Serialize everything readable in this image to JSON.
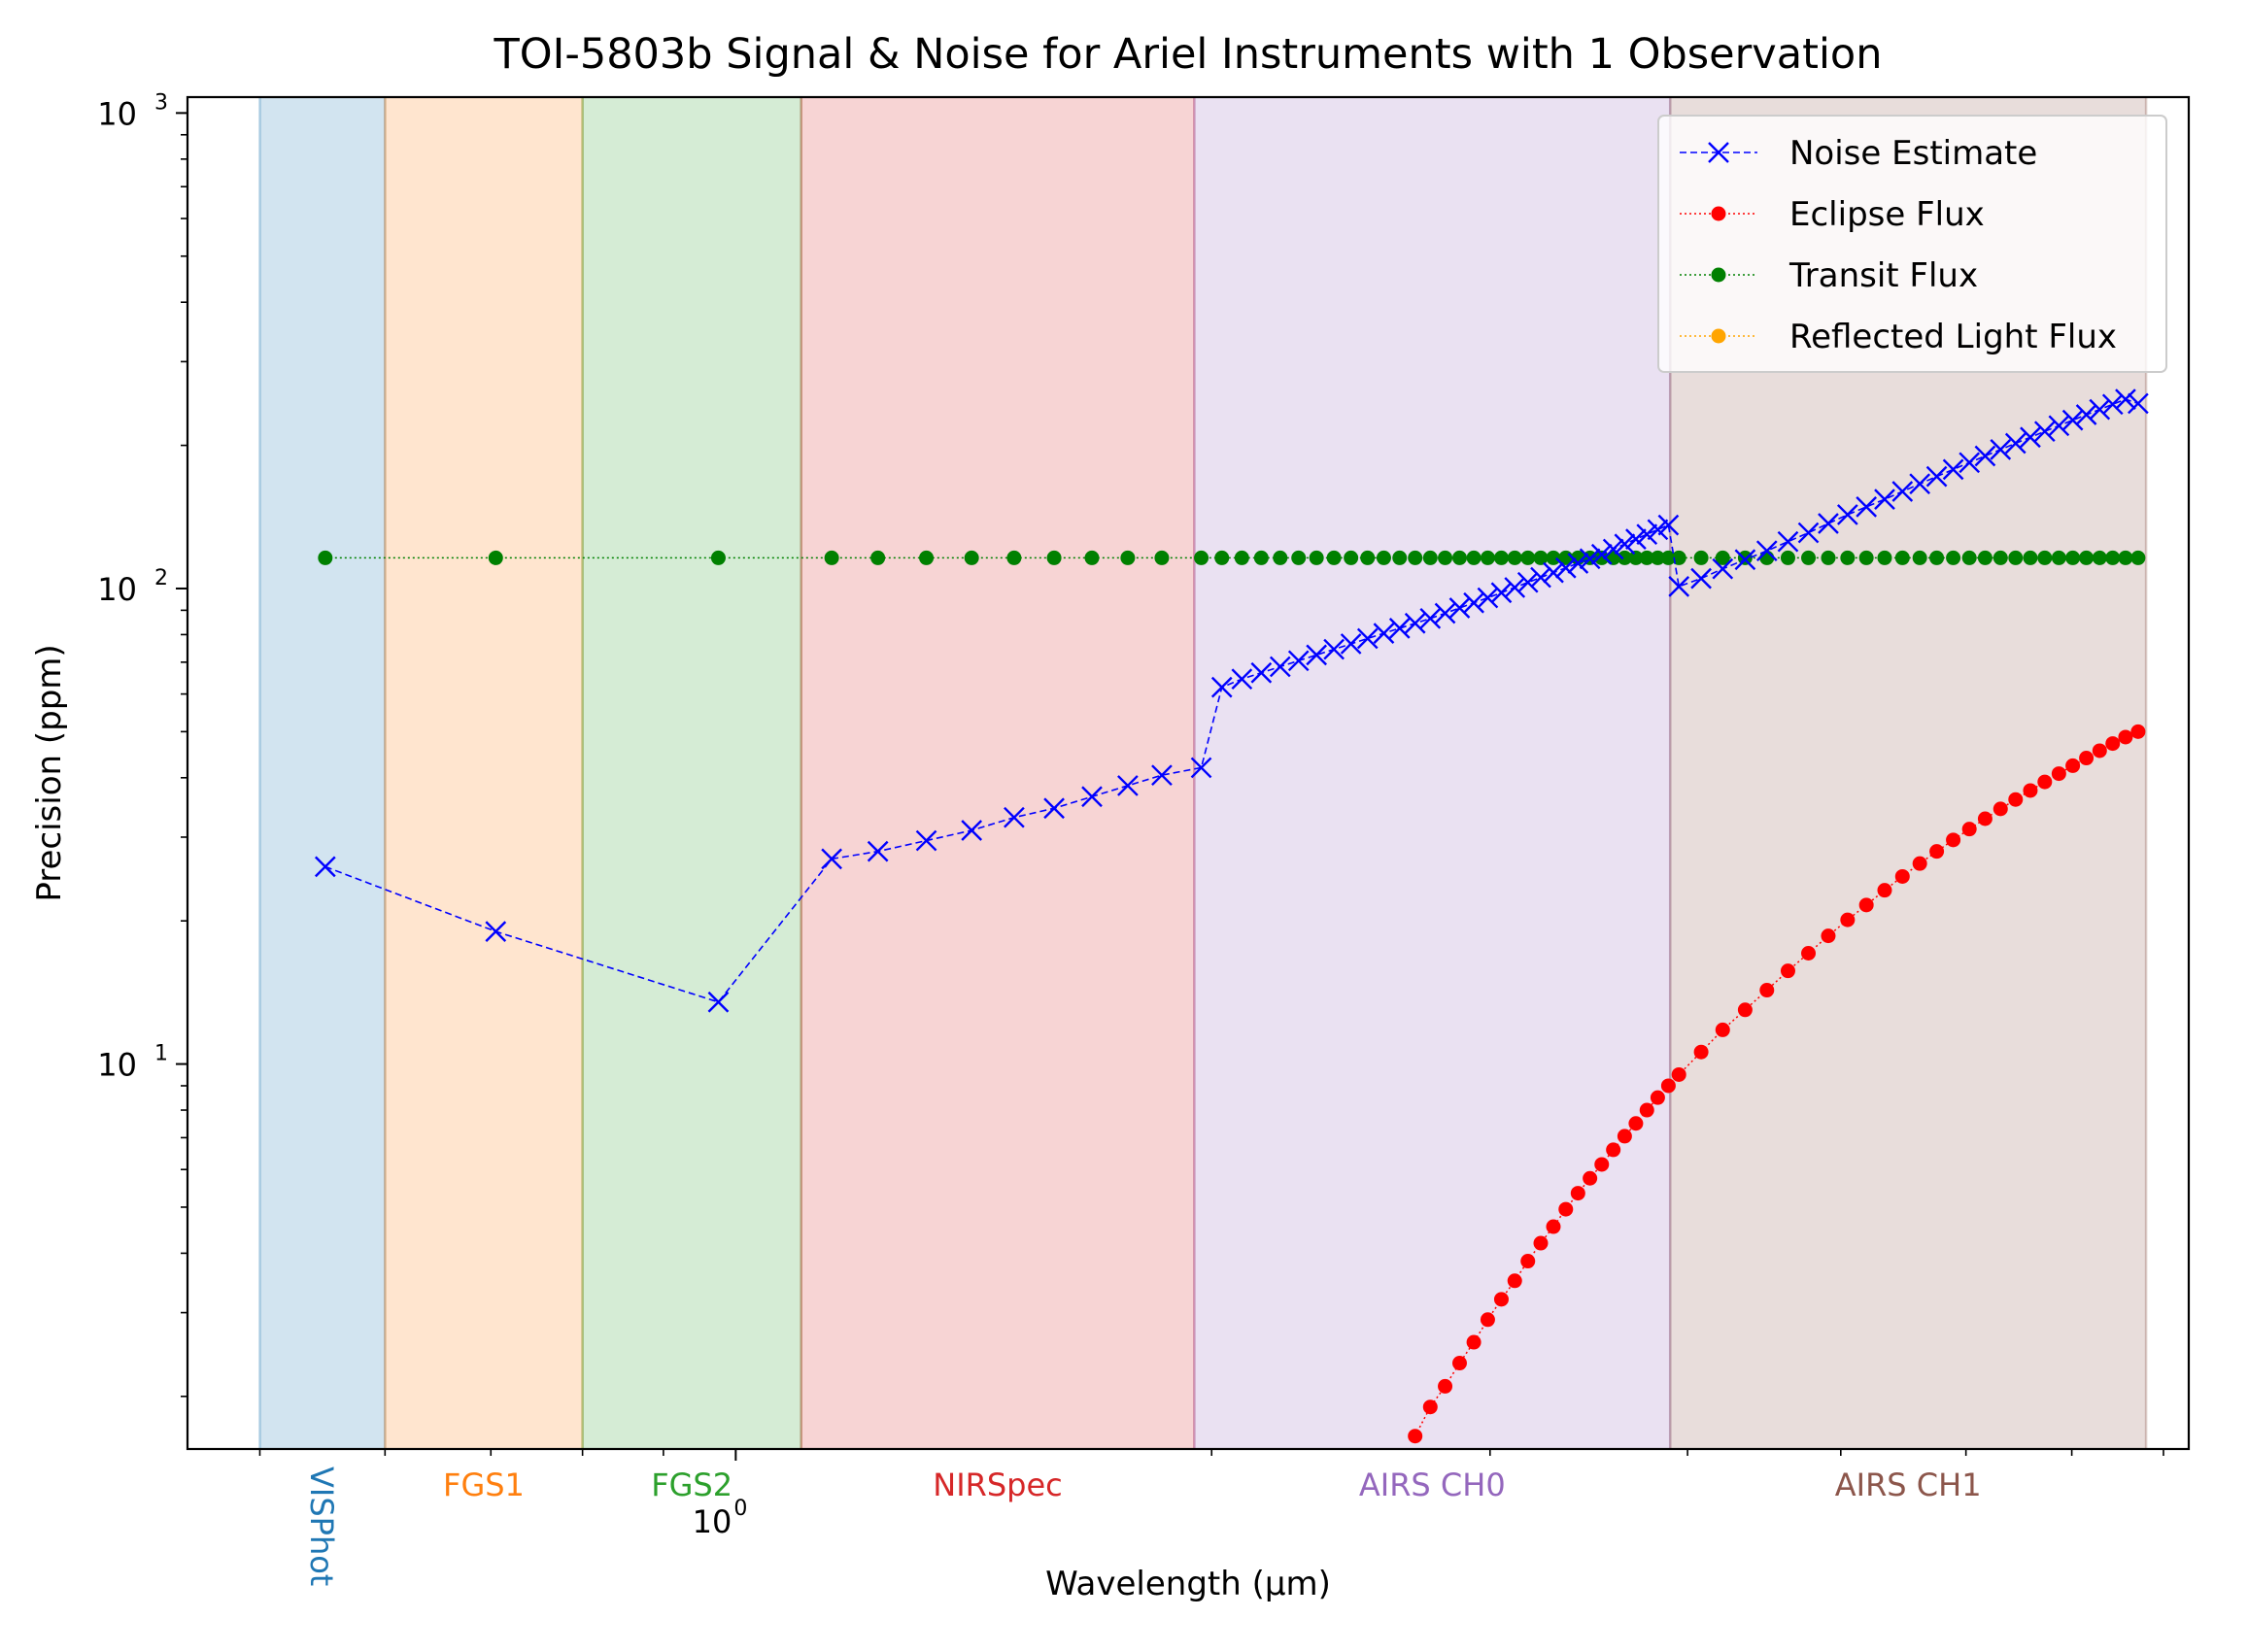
{
  "chart_data": {
    "type": "line",
    "title": "TOI-5803b Signal & Noise for Ariel Instruments with 1 Observation",
    "xlabel": "Wavelength (μm)",
    "ylabel": "Precision (ppm)",
    "x_scale": "log",
    "y_scale": "log",
    "xlim": [
      0.45,
      8.3
    ],
    "ylim": [
      1.55,
      1080
    ],
    "y_tick_labels": [
      "10",
      "10",
      "10"
    ],
    "y_tick_exponents": [
      "1",
      "2",
      "3"
    ],
    "y_tick_values": [
      10,
      100,
      1000
    ],
    "x_tick_label": "10",
    "x_tick_exponent": "0",
    "x_tick_value": 1.0,
    "x_minor_ticks": [
      0.5,
      0.6,
      0.7,
      0.8,
      0.9,
      2,
      3,
      4,
      5,
      6,
      7,
      8
    ],
    "y_minor_ticks": [
      2,
      3,
      4,
      5,
      6,
      7,
      8,
      9,
      20,
      30,
      40,
      50,
      60,
      70,
      80,
      90,
      200,
      300,
      400,
      500,
      600,
      700,
      800,
      900
    ],
    "instrument_bands": [
      {
        "name": "VISPhot",
        "range": [
          0.5,
          0.6
        ],
        "color": "#1f77b4",
        "label_rotated": true
      },
      {
        "name": "FGS1",
        "range": [
          0.6,
          0.8
        ],
        "color": "#ff7f0e",
        "label_rotated": false
      },
      {
        "name": "FGS2",
        "range": [
          0.8,
          1.1
        ],
        "color": "#2ca02c",
        "label_rotated": false
      },
      {
        "name": "NIRSpec",
        "range": [
          1.1,
          1.95
        ],
        "color": "#d62728",
        "label_rotated": false
      },
      {
        "name": "AIRS CH0",
        "range": [
          1.95,
          3.9
        ],
        "color": "#9467bd",
        "label_rotated": false
      },
      {
        "name": "AIRS CH1",
        "range": [
          3.9,
          7.8
        ],
        "color": "#8c564b",
        "label_rotated": false
      }
    ],
    "legend": {
      "placement": "top-right",
      "entries": [
        "Noise Estimate",
        "Eclipse Flux",
        "Transit Flux",
        "Reflected Light Flux"
      ]
    },
    "series": [
      {
        "name": "Noise Estimate",
        "color": "#0000ff",
        "marker": "x",
        "line": "dashed",
        "x": [
          0.55,
          0.705,
          0.975,
          1.15,
          1.23,
          1.32,
          1.41,
          1.5,
          1.59,
          1.68,
          1.77,
          1.86,
          1.97,
          2.03,
          2.09,
          2.15,
          2.21,
          2.27,
          2.33,
          2.39,
          2.45,
          2.51,
          2.57,
          2.63,
          2.69,
          2.75,
          2.81,
          2.87,
          2.93,
          2.99,
          3.05,
          3.11,
          3.17,
          3.23,
          3.29,
          3.35,
          3.41,
          3.47,
          3.53,
          3.59,
          3.65,
          3.71,
          3.77,
          3.83,
          3.89,
          3.95,
          4.08,
          4.21,
          4.35,
          4.49,
          4.63,
          4.77,
          4.91,
          5.05,
          5.19,
          5.33,
          5.47,
          5.61,
          5.75,
          5.89,
          6.03,
          6.17,
          6.31,
          6.45,
          6.59,
          6.73,
          6.87,
          7.01,
          7.15,
          7.29,
          7.43,
          7.57,
          7.71
        ],
        "y": [
          26,
          19,
          13.5,
          27,
          28,
          29.5,
          31,
          33,
          34.5,
          36.5,
          38.5,
          40.5,
          42,
          62,
          64.5,
          66.5,
          68.5,
          70.5,
          72.5,
          74.5,
          76.5,
          78.5,
          80.5,
          82.5,
          84.5,
          86.5,
          88.7,
          91,
          93.3,
          95.6,
          98,
          100.5,
          103,
          105.5,
          108,
          110.5,
          113,
          115.5,
          118,
          121,
          124,
          127,
          130,
          133,
          136,
          101,
          105,
          110,
          115,
          120,
          125.5,
          131,
          137,
          143,
          148.5,
          154,
          160,
          166,
          172,
          178,
          184,
          190,
          196,
          202,
          208,
          214,
          220,
          226,
          232,
          238,
          244,
          250,
          245
        ]
      },
      {
        "name": "Eclipse Flux",
        "color": "#ff0000",
        "marker": "o",
        "line": "dotted",
        "x": [
          2.69,
          2.75,
          2.81,
          2.87,
          2.93,
          2.99,
          3.05,
          3.11,
          3.17,
          3.23,
          3.29,
          3.35,
          3.41,
          3.47,
          3.53,
          3.59,
          3.65,
          3.71,
          3.77,
          3.83,
          3.89,
          3.95,
          4.08,
          4.21,
          4.35,
          4.49,
          4.63,
          4.77,
          4.91,
          5.05,
          5.19,
          5.33,
          5.47,
          5.61,
          5.75,
          5.89,
          6.03,
          6.17,
          6.31,
          6.45,
          6.59,
          6.73,
          6.87,
          7.01,
          7.15,
          7.29,
          7.43,
          7.57,
          7.71
        ],
        "y": [
          1.65,
          1.9,
          2.1,
          2.35,
          2.6,
          2.9,
          3.2,
          3.5,
          3.85,
          4.2,
          4.55,
          4.95,
          5.35,
          5.75,
          6.15,
          6.6,
          7.05,
          7.5,
          8.0,
          8.5,
          9.0,
          9.5,
          10.6,
          11.8,
          13.0,
          14.3,
          15.7,
          17.1,
          18.6,
          20.1,
          21.6,
          23.2,
          24.8,
          26.4,
          28.0,
          29.6,
          31.2,
          32.8,
          34.4,
          36.0,
          37.6,
          39.2,
          40.8,
          42.4,
          44.0,
          45.6,
          47.2,
          48.7,
          50.0
        ]
      },
      {
        "name": "Transit Flux",
        "color": "#008000",
        "marker": "o",
        "line": "dotted",
        "x": [
          0.55,
          0.705,
          0.975,
          1.15,
          1.23,
          1.32,
          1.41,
          1.5,
          1.59,
          1.68,
          1.77,
          1.86,
          1.97,
          2.03,
          2.09,
          2.15,
          2.21,
          2.27,
          2.33,
          2.39,
          2.45,
          2.51,
          2.57,
          2.63,
          2.69,
          2.75,
          2.81,
          2.87,
          2.93,
          2.99,
          3.05,
          3.11,
          3.17,
          3.23,
          3.29,
          3.35,
          3.41,
          3.47,
          3.53,
          3.59,
          3.65,
          3.71,
          3.77,
          3.83,
          3.89,
          3.95,
          4.08,
          4.21,
          4.35,
          4.49,
          4.63,
          4.77,
          4.91,
          5.05,
          5.19,
          5.33,
          5.47,
          5.61,
          5.75,
          5.89,
          6.03,
          6.17,
          6.31,
          6.45,
          6.59,
          6.73,
          6.87,
          7.01,
          7.15,
          7.29,
          7.43,
          7.57,
          7.71
        ],
        "y_constant": 116
      },
      {
        "name": "Reflected Light Flux",
        "color": "#ffa500",
        "marker": "o",
        "line": "dotted",
        "x": [],
        "y": []
      }
    ]
  }
}
